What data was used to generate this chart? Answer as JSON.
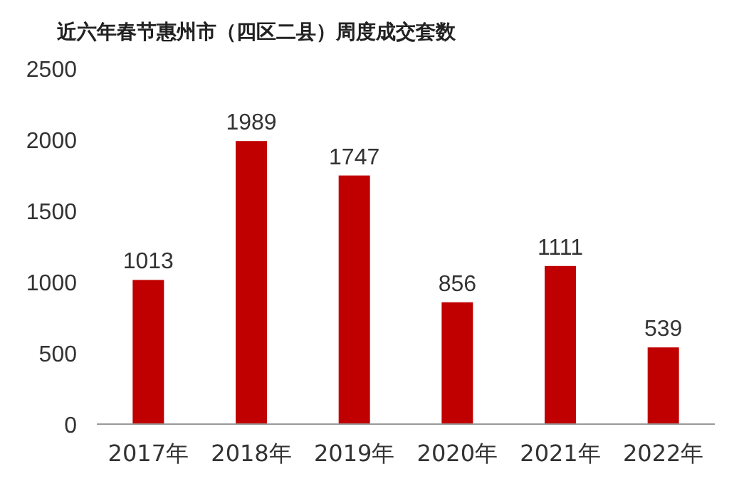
{
  "chart_data": {
    "type": "bar",
    "title": "近六年春节惠州市（四区二县）周度成交套数",
    "categories": [
      "2017年",
      "2018年",
      "2019年",
      "2020年",
      "2021年",
      "2022年"
    ],
    "values": [
      1013,
      1989,
      1747,
      856,
      1111,
      539
    ],
    "color": "#c00000",
    "ylim": [
      0,
      2500
    ],
    "yticks": [
      0,
      500,
      1000,
      1500,
      2000,
      2500
    ],
    "data_labels": true
  }
}
